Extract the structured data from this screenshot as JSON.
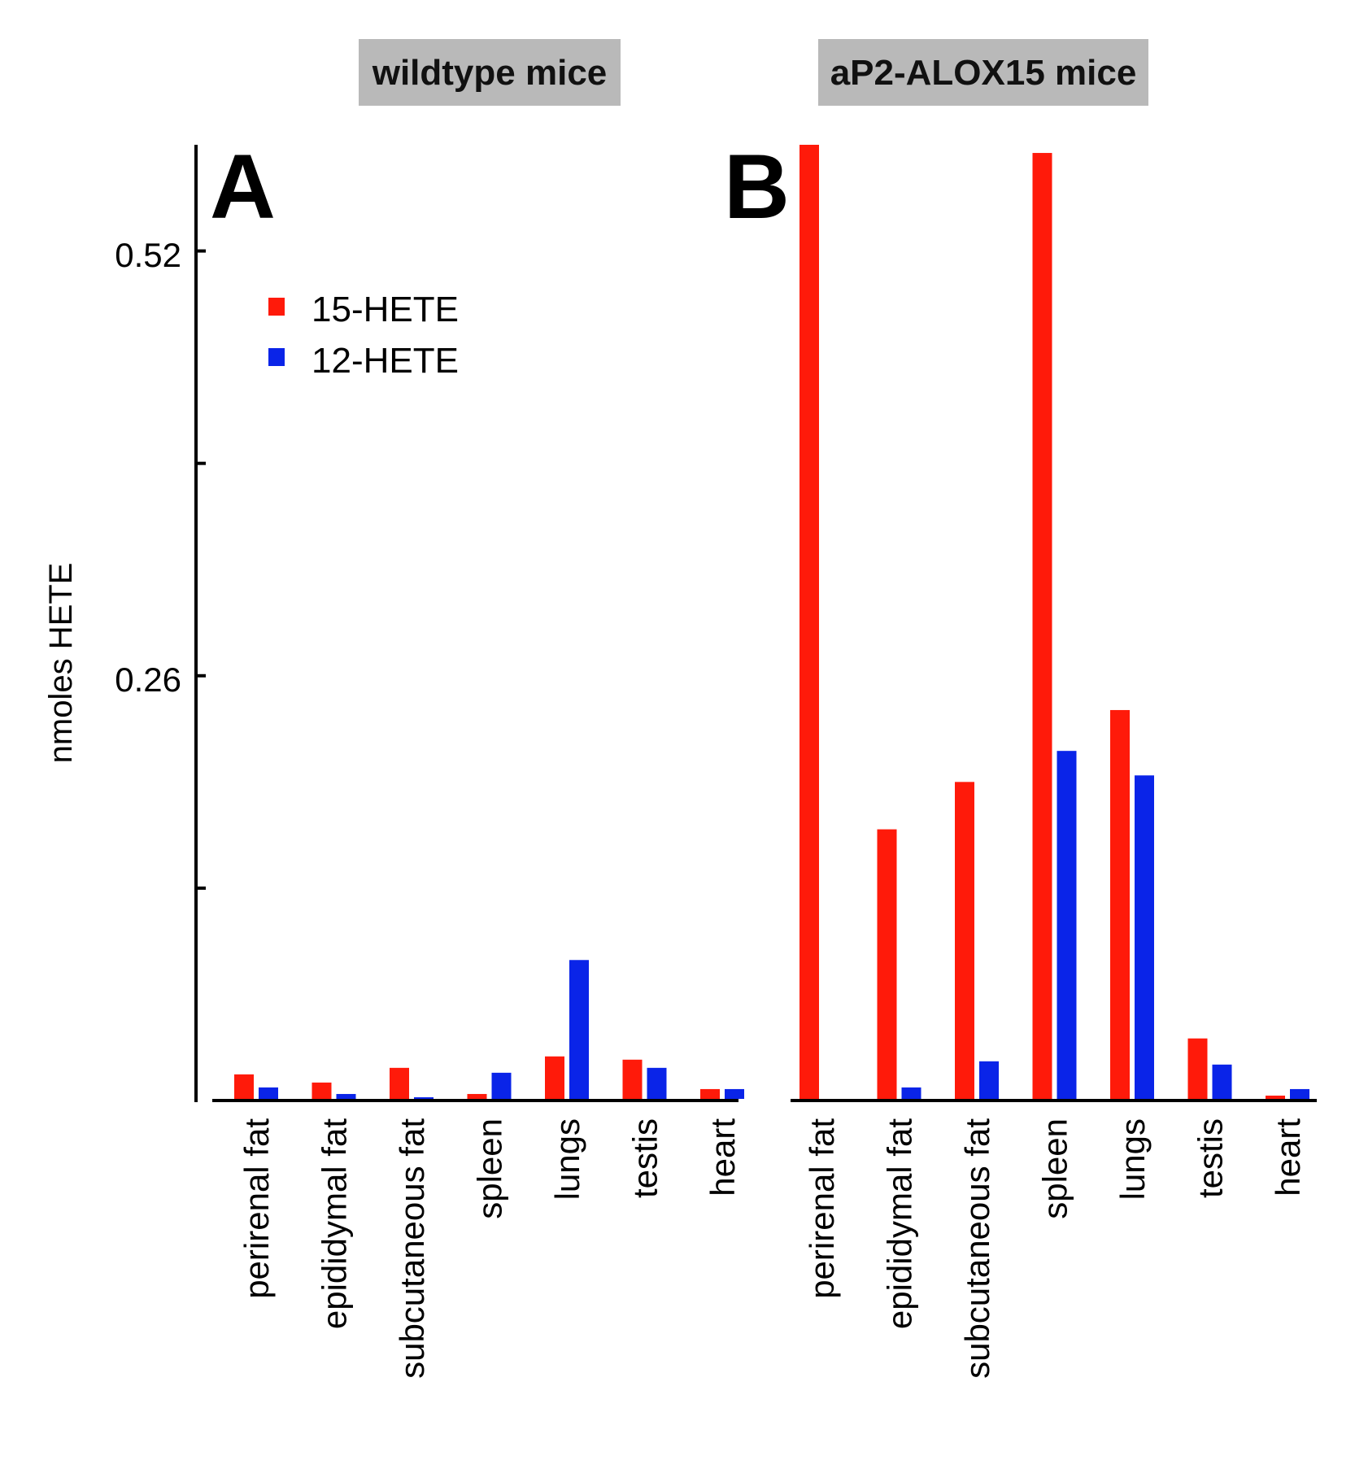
{
  "figure": {
    "ylabel": "nmoles HETE",
    "y_tick_labels": [
      "0.52",
      "0.26"
    ]
  },
  "legend": [
    {
      "label": "15-HETE",
      "color": "#ff1a0a"
    },
    {
      "label": "12-HETE",
      "color": "#0a24e8"
    }
  ],
  "chart_data": [
    {
      "type": "bar",
      "panel": "A",
      "title": "wildtype mice",
      "ylabel": "nmoles HETE",
      "ylim": [
        0,
        0.585
      ],
      "yticks": [
        0,
        0.13,
        0.26,
        0.39,
        0.52
      ],
      "categories": [
        "perirenal fat",
        "epididymal fat",
        "subcutaneous fat",
        "spleen",
        "lungs",
        "testis",
        "heart"
      ],
      "series": [
        {
          "name": "15-HETE",
          "color": "#ff1a0a",
          "values": [
            0.016,
            0.011,
            0.02,
            0.004,
            0.027,
            0.025,
            0.007
          ]
        },
        {
          "name": "12-HETE",
          "color": "#0a24e8",
          "values": [
            0.008,
            0.004,
            0.002,
            0.017,
            0.086,
            0.02,
            0.007
          ]
        }
      ]
    },
    {
      "type": "bar",
      "panel": "B",
      "title": "aP2-ALOX15 mice",
      "ylabel": "nmoles HETE",
      "ylim": [
        0,
        0.585
      ],
      "yticks": [
        0,
        0.13,
        0.26,
        0.39,
        0.52
      ],
      "categories": [
        "perirenal fat",
        "epididymal fat",
        "subcutaneous fat",
        "spleen",
        "lungs",
        "testis",
        "heart"
      ],
      "series": [
        {
          "name": "15-HETE",
          "color": "#ff1a0a",
          "values": [
            0.585,
            0.166,
            0.195,
            0.58,
            0.239,
            0.038,
            0.003
          ]
        },
        {
          "name": "12-HETE",
          "color": "#0a24e8",
          "values": [
            0.0,
            0.008,
            0.024,
            0.214,
            0.199,
            0.022,
            0.007
          ]
        }
      ]
    }
  ]
}
